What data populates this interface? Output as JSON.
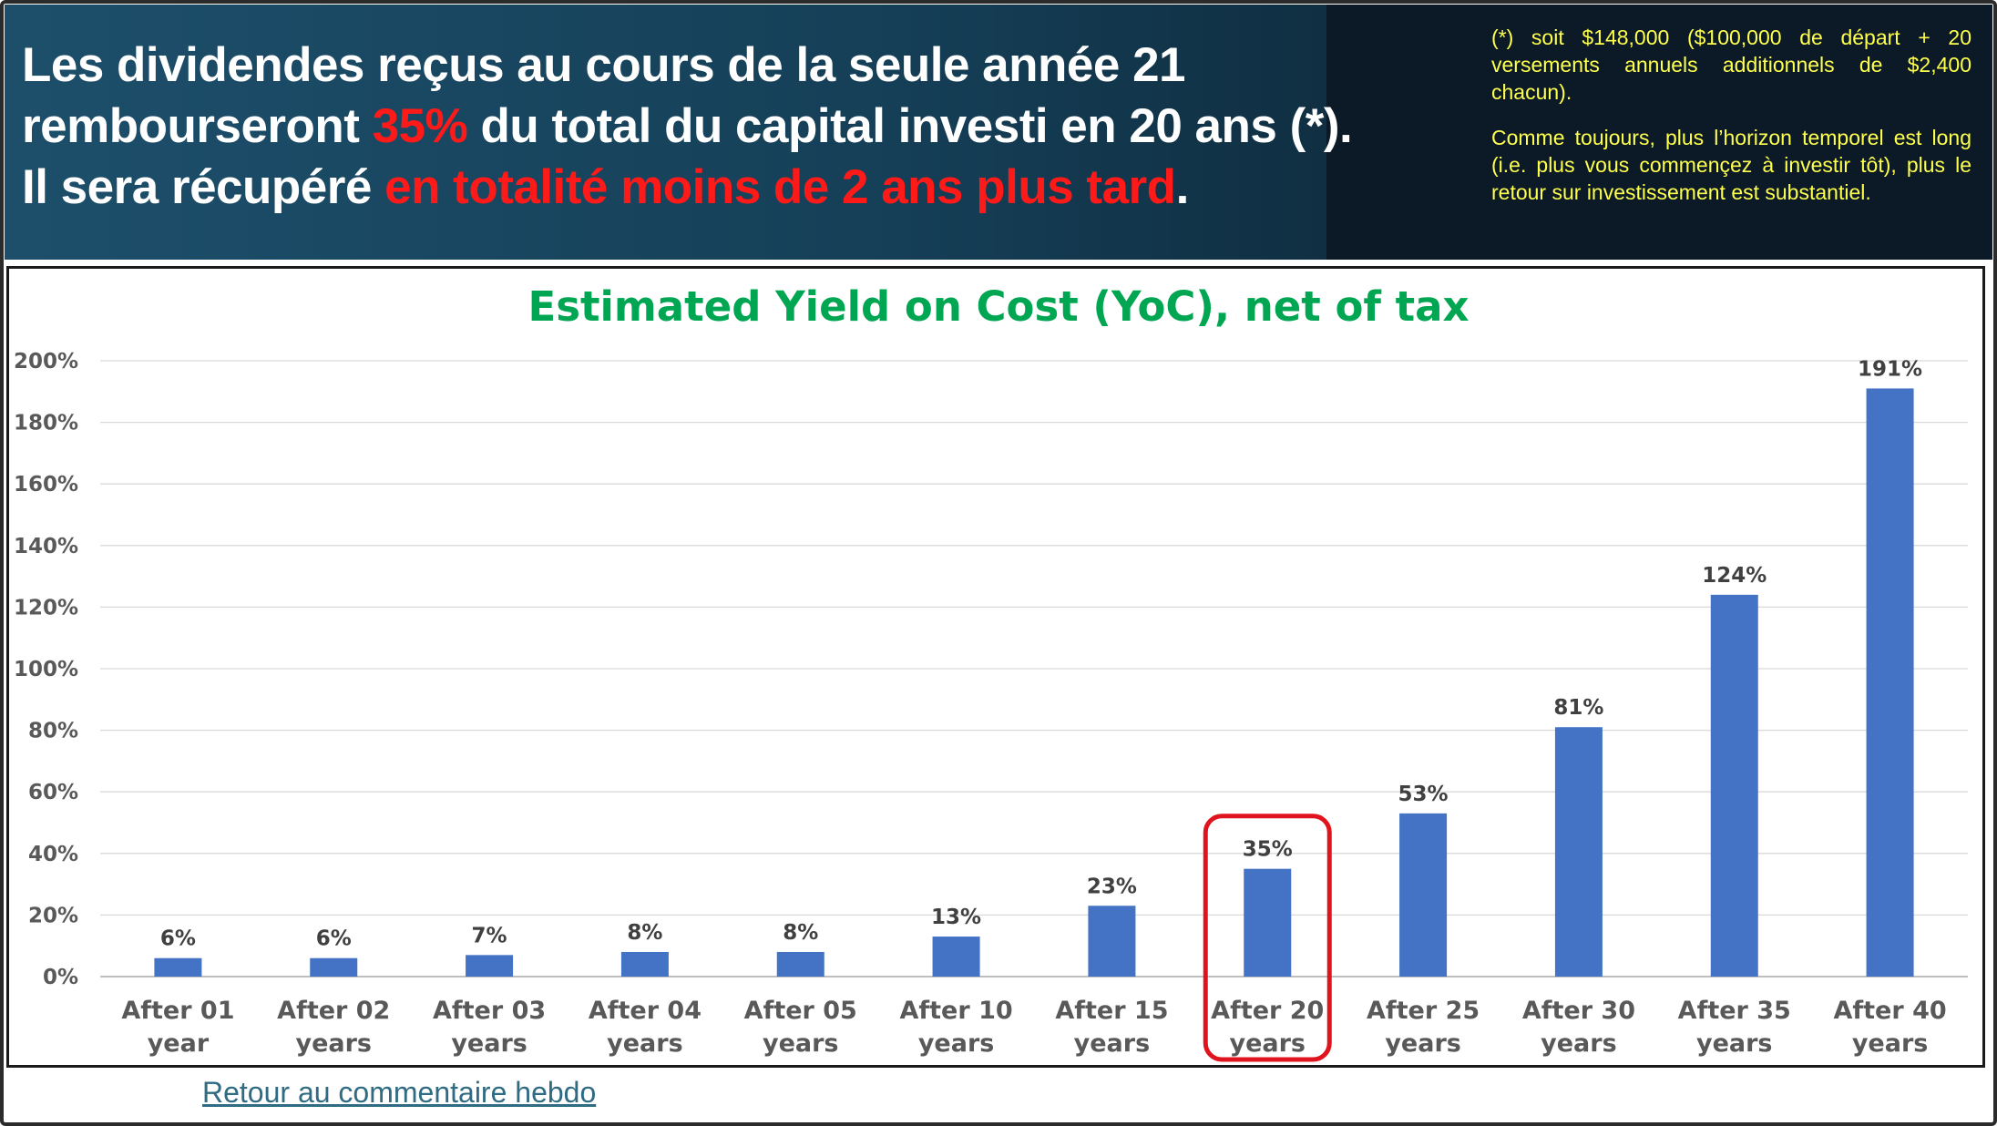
{
  "header": {
    "line1": "Les dividendes reçus au cours de la seule année 21",
    "line2_before": "rembourseront ",
    "line2_highlight": "35%",
    "line2_after": " du total du capital investi en 20 ans (*).",
    "line3_before": "Il sera récupéré ",
    "line3_highlight": "en totalité moins de 2 ans plus tard",
    "line3_after": ".",
    "note1": "(*) soit $148,000 ($100,000 de départ + 20 versements annuels additionnels de $2,400 chacun).",
    "note2": "Comme toujours, plus l’horizon temporel est long (i.e. plus vous commençez à investir tôt), plus le retour sur investissement est substantiel."
  },
  "chart_data": {
    "type": "bar",
    "title": "Estimated Yield on Cost (YoC), net of tax",
    "xlabel": "",
    "ylabel": "",
    "ylim": [
      0,
      200
    ],
    "yticks": [
      "0%",
      "20%",
      "40%",
      "60%",
      "80%",
      "100%",
      "120%",
      "140%",
      "160%",
      "180%",
      "200%"
    ],
    "categories": [
      [
        "After 01",
        "year"
      ],
      [
        "After 02",
        "years"
      ],
      [
        "After 03",
        "years"
      ],
      [
        "After 04",
        "years"
      ],
      [
        "After 05",
        "years"
      ],
      [
        "After 10",
        "years"
      ],
      [
        "After 15",
        "years"
      ],
      [
        "After 20",
        "years"
      ],
      [
        "After 25",
        "years"
      ],
      [
        "After 30",
        "years"
      ],
      [
        "After 35",
        "years"
      ],
      [
        "After 40",
        "years"
      ]
    ],
    "values": [
      6,
      6,
      7,
      8,
      8,
      13,
      23,
      35,
      53,
      81,
      124,
      191
    ],
    "data_labels": [
      "6%",
      "6%",
      "7%",
      "8%",
      "8%",
      "13%",
      "23%",
      "35%",
      "53%",
      "81%",
      "124%",
      "191%"
    ],
    "bar_color": "#4472c4",
    "highlight_index": 7,
    "highlight_color": "#e0141e",
    "grid": true,
    "legend": "none"
  },
  "footer": {
    "link_text": "Retour au commentaire hebdo"
  }
}
